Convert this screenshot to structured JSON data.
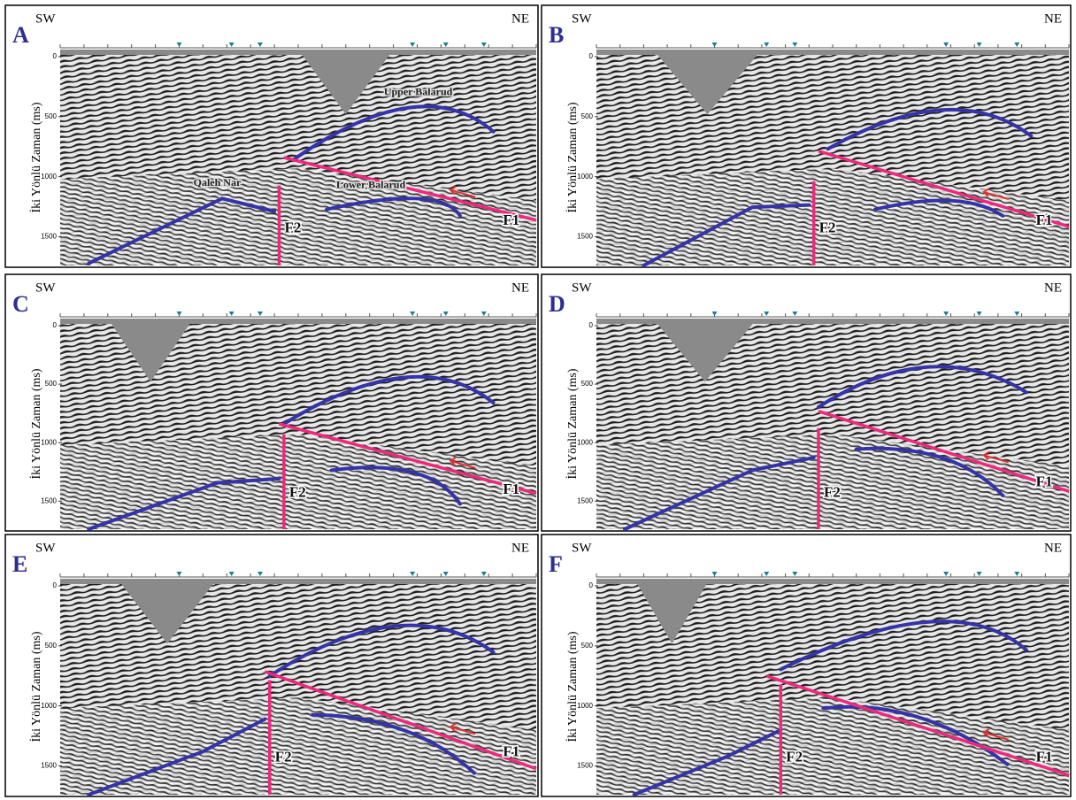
{
  "panels": [
    {
      "letter": "A",
      "sw": "SW",
      "ne": "NE",
      "y_axis_label": "İki Yönlü Zaman (ms)",
      "y_ticks": [
        0,
        500,
        1000,
        1500
      ],
      "upper_horizon": "Upper Balarud",
      "left_horizon": "Qaleh Nar",
      "lower_horizon": "Lower Balarud",
      "fault_1": "F1",
      "fault_2": "F2"
    },
    {
      "letter": "B",
      "sw": "SW",
      "ne": "NE",
      "y_axis_label": "İki Yönlü Zaman (ms)",
      "y_ticks": [
        0,
        500,
        1000,
        1500
      ],
      "fault_1": "F1",
      "fault_2": "F2"
    },
    {
      "letter": "C",
      "sw": "SW",
      "ne": "NE",
      "y_axis_label": "İki Yönlü Zaman (ms)",
      "y_ticks": [
        0,
        500,
        1000,
        1500
      ],
      "fault_1": "F1",
      "fault_2": "F2"
    },
    {
      "letter": "D",
      "sw": "SW",
      "ne": "NE",
      "y_axis_label": "İki Yönlü Zaman (ms)",
      "y_ticks": [
        0,
        500,
        1000,
        1500
      ],
      "fault_1": "F1",
      "fault_2": "F2"
    },
    {
      "letter": "E",
      "sw": "SW",
      "ne": "NE",
      "y_axis_label": "İki Yönlü Zaman (ms)",
      "y_ticks": [
        0,
        500,
        1000,
        1500
      ],
      "fault_1": "F1",
      "fault_2": "F2"
    },
    {
      "letter": "F",
      "sw": "SW",
      "ne": "NE",
      "y_axis_label": "İki Yönlü Zaman (ms)",
      "y_ticks": [
        0,
        500,
        1000,
        1500
      ],
      "fault_1": "F1",
      "fault_2": "F2"
    }
  ]
}
